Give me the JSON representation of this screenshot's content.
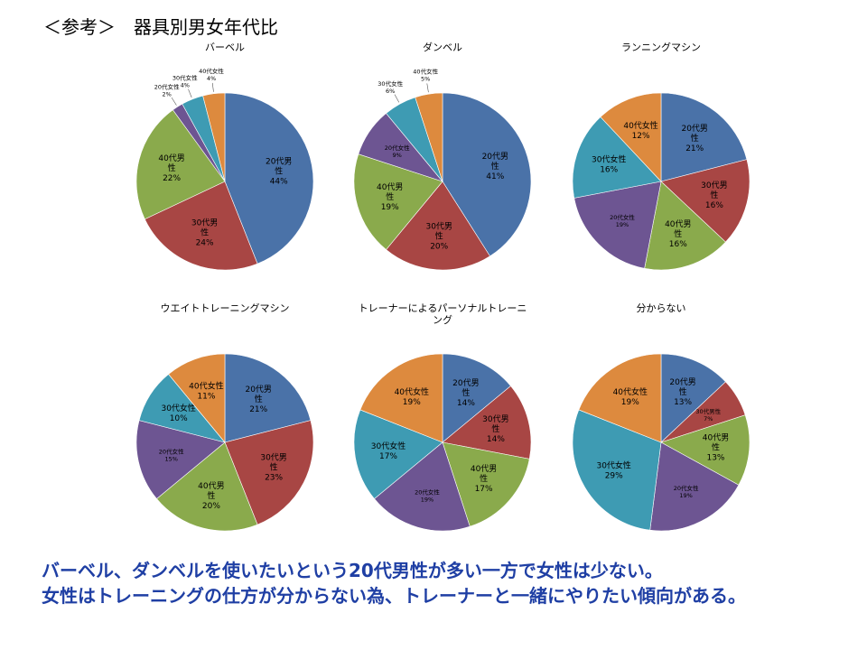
{
  "heading": "＜参考＞　器具別男女年代比",
  "legend_order": [
    "20代男性",
    "30代男性",
    "40代男性",
    "20代女性",
    "30代女性",
    "40代女性"
  ],
  "colors": {
    "20代男性": "#4a72a8",
    "30代男性": "#a84644",
    "40代男性": "#8aaa4c",
    "20代女性": "#6d5592",
    "30代女性": "#3e9bb3",
    "40代女性": "#dd8a3e"
  },
  "chart_data": [
    {
      "type": "pie",
      "title": "バーベル",
      "slices": [
        {
          "label": "20代男\n性",
          "category": "20代男性",
          "value": 44,
          "value_label": "44%"
        },
        {
          "label": "30代男\n性",
          "category": "30代男性",
          "value": 24,
          "value_label": "24%"
        },
        {
          "label": "40代男\n性",
          "category": "40代男性",
          "value": 22,
          "value_label": "22%"
        },
        {
          "label": "20代女性",
          "category": "20代女性",
          "value": 2,
          "value_label": "2%"
        },
        {
          "label": "30代女性",
          "category": "30代女性",
          "value": 4,
          "value_label": "4%"
        },
        {
          "label": "40代女性",
          "category": "40代女性",
          "value": 4,
          "value_label": "4%"
        }
      ]
    },
    {
      "type": "pie",
      "title": "ダンベル",
      "slices": [
        {
          "label": "20代男\n性",
          "category": "20代男性",
          "value": 41,
          "value_label": "41%"
        },
        {
          "label": "30代男\n性",
          "category": "30代男性",
          "value": 20,
          "value_label": "20%"
        },
        {
          "label": "40代男\n性",
          "category": "40代男性",
          "value": 19,
          "value_label": "19%"
        },
        {
          "label": "20代女性",
          "category": "20代女性",
          "value": 9,
          "value_label": "9%"
        },
        {
          "label": "30代女性",
          "category": "30代女性",
          "value": 6,
          "value_label": "6%"
        },
        {
          "label": "40代女性",
          "category": "40代女性",
          "value": 5,
          "value_label": "5%"
        }
      ]
    },
    {
      "type": "pie",
      "title": "ランニングマシン",
      "slices": [
        {
          "label": "20代男\n性",
          "category": "20代男性",
          "value": 21,
          "value_label": "21%"
        },
        {
          "label": "30代男\n性",
          "category": "30代男性",
          "value": 16,
          "value_label": "16%"
        },
        {
          "label": "40代男\n性",
          "category": "40代男性",
          "value": 16,
          "value_label": "16%"
        },
        {
          "label": "20代女性",
          "category": "20代女性",
          "value": 19,
          "value_label": "19%"
        },
        {
          "label": "30代女性",
          "category": "30代女性",
          "value": 16,
          "value_label": "16%"
        },
        {
          "label": "40代女性",
          "category": "40代女性",
          "value": 12,
          "value_label": "12%"
        }
      ]
    },
    {
      "type": "pie",
      "title": "ウエイトトレーニングマシン",
      "slices": [
        {
          "label": "20代男\n性",
          "category": "20代男性",
          "value": 21,
          "value_label": "21%"
        },
        {
          "label": "30代男\n性",
          "category": "30代男性",
          "value": 23,
          "value_label": "23%"
        },
        {
          "label": "40代男\n性",
          "category": "40代男性",
          "value": 20,
          "value_label": "20%"
        },
        {
          "label": "20代女性",
          "category": "20代女性",
          "value": 15,
          "value_label": "15%"
        },
        {
          "label": "30代女性",
          "category": "30代女性",
          "value": 10,
          "value_label": "10%"
        },
        {
          "label": "40代女性",
          "category": "40代女性",
          "value": 11,
          "value_label": "11%"
        }
      ]
    },
    {
      "type": "pie",
      "title": "トレーナーによるパーソナルトレーニ\nング",
      "slices": [
        {
          "label": "20代男\n性",
          "category": "20代男性",
          "value": 14,
          "value_label": "14%"
        },
        {
          "label": "30代男\n性",
          "category": "30代男性",
          "value": 14,
          "value_label": "14%"
        },
        {
          "label": "40代男\n性",
          "category": "40代男性",
          "value": 17,
          "value_label": "17%"
        },
        {
          "label": "20代女性",
          "category": "20代女性",
          "value": 19,
          "value_label": "19%"
        },
        {
          "label": "30代女性",
          "category": "30代女性",
          "value": 17,
          "value_label": "17%"
        },
        {
          "label": "40代女性",
          "category": "40代女性",
          "value": 19,
          "value_label": "19%"
        }
      ]
    },
    {
      "type": "pie",
      "title": "分からない",
      "slices": [
        {
          "label": "20代男\n性",
          "category": "20代男性",
          "value": 13,
          "value_label": "13%"
        },
        {
          "label": "30代男性",
          "category": "30代男性",
          "value": 7,
          "value_label": "7%"
        },
        {
          "label": "40代男\n性",
          "category": "40代男性",
          "value": 13,
          "value_label": "13%"
        },
        {
          "label": "20代女性",
          "category": "20代女性",
          "value": 19,
          "value_label": "19%"
        },
        {
          "label": "30代女性",
          "category": "30代女性",
          "value": 29,
          "value_label": "29%"
        },
        {
          "label": "40代女性",
          "category": "40代女性",
          "value": 19,
          "value_label": "19%"
        }
      ]
    }
  ],
  "conclusion": [
    "バーベル、ダンベルを使いたいという20代男性が多い一方で女性は少ない。",
    "女性はトレーニングの仕方が分からない為、トレーナーと一緒にやりたい傾向がある。"
  ]
}
